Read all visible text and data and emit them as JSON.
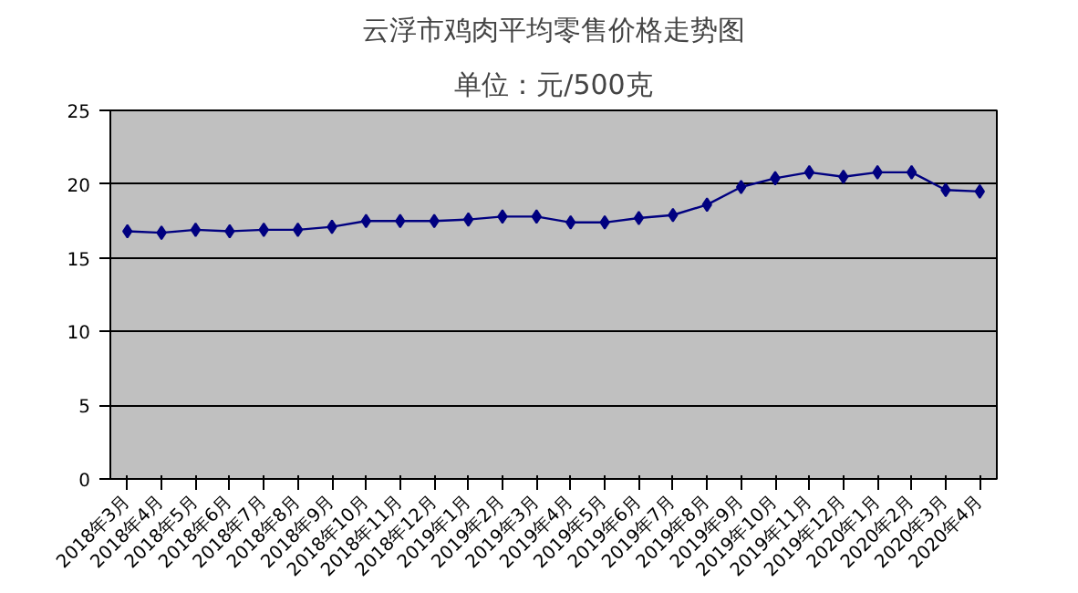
{
  "chart_data": {
    "type": "line",
    "title": "云浮市鸡肉平均零售价格走势图",
    "subtitle": "单位：元/500克",
    "categories": [
      "2018年3月",
      "2018年4月",
      "2018年5月",
      "2018年6月",
      "2018年7月",
      "2018年8月",
      "2018年9月",
      "2018年10月",
      "2018年11月",
      "2018年12月",
      "2019年1月",
      "2019年2月",
      "2019年3月",
      "2019年4月",
      "2019年5月",
      "2019年6月",
      "2019年7月",
      "2019年8月",
      "2019年9月",
      "2019年10月",
      "2019年11月",
      "2019年12月",
      "2020年1月",
      "2020年2月",
      "2020年3月",
      "2020年4月"
    ],
    "series": [
      {
        "color": "#000080",
        "values": [
          16.8,
          16.7,
          16.9,
          16.8,
          16.9,
          16.9,
          17.1,
          17.5,
          17.5,
          17.5,
          17.6,
          17.8,
          17.8,
          17.4,
          17.4,
          17.7,
          17.9,
          18.6,
          19.8,
          20.4,
          20.8,
          20.5,
          20.8,
          20.8,
          19.6,
          19.5
        ]
      }
    ],
    "ylim": [
      0,
      25
    ],
    "yticks": [
      0,
      5,
      10,
      15,
      20,
      25
    ],
    "grid": "y",
    "marker": "diamond"
  }
}
